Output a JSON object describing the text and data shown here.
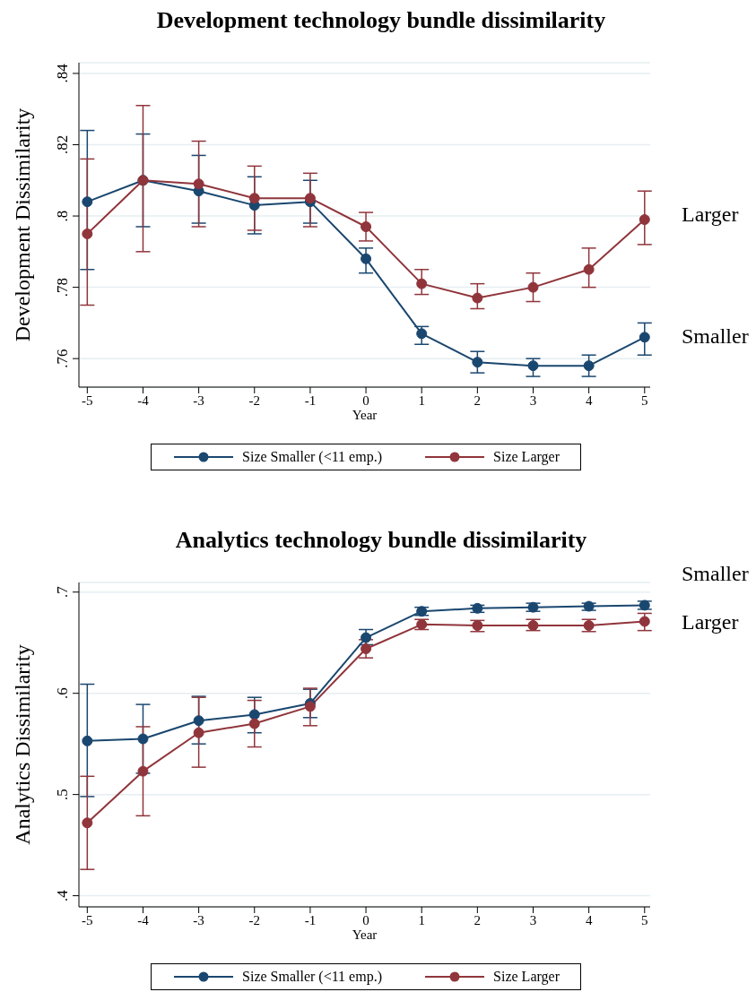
{
  "chart_data": [
    {
      "type": "line",
      "title": "Development technology bundle dissimilarity",
      "xlabel": "Year",
      "ylabel": "Development Dissimilarity",
      "x": [
        -5,
        -4,
        -3,
        -2,
        -1,
        0,
        1,
        2,
        3,
        4,
        5
      ],
      "xlim": [
        -5.15,
        5.1
      ],
      "xticks": [
        -5,
        -4,
        -3,
        -2,
        -1,
        0,
        1,
        2,
        3,
        4,
        5
      ],
      "ylim": [
        0.752,
        0.843
      ],
      "yticks": [
        {
          "value": 0.76,
          "label": ".76"
        },
        {
          "value": 0.78,
          "label": ".78"
        },
        {
          "value": 0.8,
          "label": ".8"
        },
        {
          "value": 0.82,
          "label": ".82"
        },
        {
          "value": 0.84,
          "label": ".84"
        }
      ],
      "grid": "y",
      "marker": "circle",
      "legend": "bottom",
      "annotations": [
        "Larger",
        "Smaller"
      ],
      "series": [
        {
          "name": "Size Smaller (<11 emp.)",
          "color": "#1a476f",
          "values": [
            0.804,
            0.81,
            0.807,
            0.803,
            0.804,
            0.788,
            0.767,
            0.759,
            0.758,
            0.758,
            0.766
          ],
          "errors": [
            [
              0.785,
              0.824
            ],
            [
              0.797,
              0.823
            ],
            [
              0.798,
              0.817
            ],
            [
              0.795,
              0.811
            ],
            [
              0.798,
              0.81
            ],
            [
              0.784,
              0.791
            ],
            [
              0.764,
              0.769
            ],
            [
              0.756,
              0.762
            ],
            [
              0.755,
              0.76
            ],
            [
              0.755,
              0.761
            ],
            [
              0.761,
              0.77
            ]
          ]
        },
        {
          "name": "Size Larger",
          "color": "#90353b",
          "values": [
            0.795,
            0.81,
            0.809,
            0.805,
            0.805,
            0.797,
            0.781,
            0.777,
            0.78,
            0.785,
            0.799
          ],
          "errors": [
            [
              0.775,
              0.816
            ],
            [
              0.79,
              0.831
            ],
            [
              0.797,
              0.821
            ],
            [
              0.796,
              0.814
            ],
            [
              0.797,
              0.812
            ],
            [
              0.793,
              0.801
            ],
            [
              0.778,
              0.785
            ],
            [
              0.774,
              0.781
            ],
            [
              0.776,
              0.784
            ],
            [
              0.78,
              0.791
            ],
            [
              0.792,
              0.807
            ]
          ]
        }
      ]
    },
    {
      "type": "line",
      "title": "Analytics technology bundle dissimilarity",
      "xlabel": "Year",
      "ylabel": "Analytics Dissimilarity",
      "x": [
        -5,
        -4,
        -3,
        -2,
        -1,
        0,
        1,
        2,
        3,
        4,
        5
      ],
      "xlim": [
        -5.15,
        5.1
      ],
      "xticks": [
        -5,
        -4,
        -3,
        -2,
        -1,
        0,
        1,
        2,
        3,
        4,
        5
      ],
      "ylim": [
        0.389,
        0.7095
      ],
      "yticks": [
        {
          "value": 0.4,
          "label": ".4"
        },
        {
          "value": 0.5,
          "label": ".5"
        },
        {
          "value": 0.6,
          "label": ".6"
        },
        {
          "value": 0.7,
          "label": ".7"
        }
      ],
      "grid": "y",
      "marker": "circle",
      "legend": "bottom",
      "annotations": [
        "Smaller",
        "Larger"
      ],
      "series": [
        {
          "name": "Size Smaller (<11 emp.)",
          "color": "#1a476f",
          "values": [
            0.553,
            0.555,
            0.573,
            0.579,
            0.59,
            0.655,
            0.681,
            0.684,
            0.685,
            0.686,
            0.687
          ],
          "errors": [
            [
              0.498,
              0.609
            ],
            [
              0.521,
              0.589
            ],
            [
              0.55,
              0.597
            ],
            [
              0.561,
              0.596
            ],
            [
              0.576,
              0.604
            ],
            [
              0.648,
              0.663
            ],
            [
              0.677,
              0.685
            ],
            [
              0.68,
              0.687
            ],
            [
              0.681,
              0.689
            ],
            [
              0.682,
              0.689
            ],
            [
              0.683,
              0.691
            ]
          ]
        },
        {
          "name": "Size Larger",
          "color": "#90353b",
          "values": [
            0.472,
            0.523,
            0.561,
            0.57,
            0.587,
            0.644,
            0.668,
            0.667,
            0.667,
            0.667,
            0.671
          ],
          "errors": [
            [
              0.426,
              0.518
            ],
            [
              0.479,
              0.567
            ],
            [
              0.527,
              0.596
            ],
            [
              0.547,
              0.593
            ],
            [
              0.568,
              0.605
            ],
            [
              0.635,
              0.653
            ],
            [
              0.663,
              0.673
            ],
            [
              0.661,
              0.672
            ],
            [
              0.662,
              0.673
            ],
            [
              0.661,
              0.673
            ],
            [
              0.662,
              0.679
            ]
          ]
        }
      ]
    }
  ]
}
